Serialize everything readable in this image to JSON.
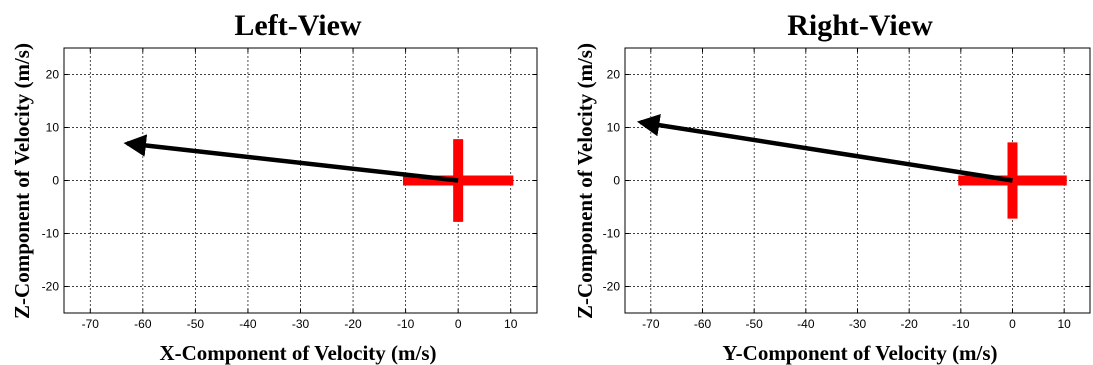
{
  "chart_data": [
    {
      "type": "line",
      "title": "Left-View",
      "xlabel": "X-Component of Velocity (m/s)",
      "ylabel": "Z-Component of Velocity (m/s)",
      "xlim": [
        -75,
        15
      ],
      "ylim": [
        -25,
        25
      ],
      "xticks": [
        -70,
        -60,
        -50,
        -40,
        -30,
        -20,
        -10,
        0,
        10
      ],
      "yticks": [
        -20,
        -10,
        0,
        10,
        20
      ],
      "grid": true,
      "cross": {
        "color": "#ff0000",
        "x": [
          -10.5,
          10.5
        ],
        "z": [
          -7.8,
          7.8
        ]
      },
      "arrow": {
        "color": "#000000",
        "from": [
          0,
          0
        ],
        "to": [
          -63,
          7
        ]
      }
    },
    {
      "type": "line",
      "title": "Right-View",
      "xlabel": "Y-Component of Velocity (m/s)",
      "ylabel": "Z-Component of Velocity (m/s)",
      "xlim": [
        -75,
        15
      ],
      "ylim": [
        -25,
        25
      ],
      "xticks": [
        -70,
        -60,
        -50,
        -40,
        -30,
        -20,
        -10,
        0,
        10
      ],
      "yticks": [
        -20,
        -10,
        0,
        10,
        20
      ],
      "grid": true,
      "cross": {
        "color": "#ff0000",
        "x": [
          -10.5,
          10.5
        ],
        "z": [
          -7.2,
          7.2
        ]
      },
      "arrow": {
        "color": "#000000",
        "from": [
          0,
          0
        ],
        "to": [
          -72,
          11
        ]
      }
    }
  ]
}
